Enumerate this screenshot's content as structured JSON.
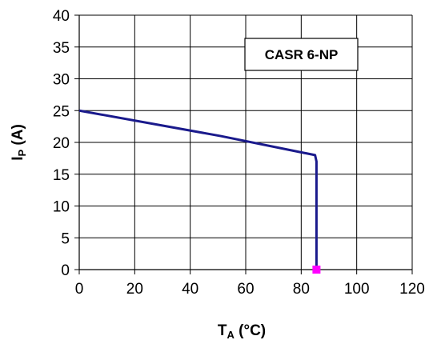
{
  "chart_data": {
    "type": "line",
    "annotation": "CASR 6-NP",
    "xlabel": {
      "main": "T",
      "sub": "A",
      "unit": " (°C)"
    },
    "ylabel": {
      "main": "I",
      "sub": "P",
      "unit": " (A)"
    },
    "xlim": [
      0,
      120
    ],
    "ylim": [
      0,
      40
    ],
    "x_ticks": [
      0,
      20,
      40,
      60,
      80,
      100,
      120
    ],
    "y_ticks": [
      0,
      5,
      10,
      15,
      20,
      25,
      30,
      35,
      40
    ],
    "x_tick_labels": [
      "0",
      "20",
      "40",
      "60",
      "80",
      "100",
      "120"
    ],
    "y_tick_labels": [
      "0",
      "5",
      "10",
      "15",
      "20",
      "25",
      "30",
      "35",
      "40"
    ],
    "grid": true,
    "series": [
      {
        "color": "#1a1a8c",
        "points": [
          {
            "x": 0,
            "y": 25
          },
          {
            "x": 51,
            "y": 21
          },
          {
            "x": 85,
            "y": 18
          },
          {
            "x": 85.5,
            "y": 17
          },
          {
            "x": 85.5,
            "y": 0
          }
        ]
      }
    ],
    "markers": [
      {
        "x": 85.5,
        "y": 0,
        "color": "#ff00ff"
      }
    ]
  }
}
